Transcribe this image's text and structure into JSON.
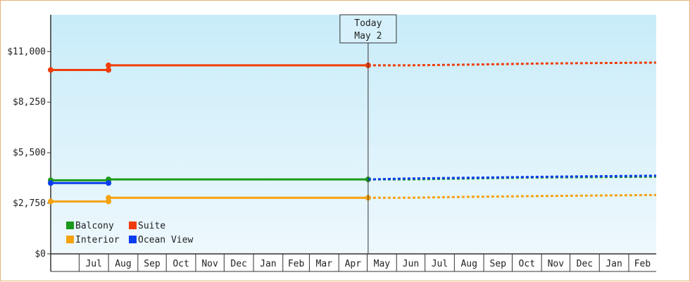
{
  "chart_data": {
    "type": "line",
    "y_ticks": [
      "$0",
      "$2,750",
      "$5,500",
      "$8,250",
      "$11,000"
    ],
    "ylim": [
      0,
      13000
    ],
    "x_range": [
      "2018-06-01",
      "2020-03-01"
    ],
    "months": [
      "Jul",
      "Aug",
      "Sep",
      "Oct",
      "Nov",
      "Dec",
      "Jan",
      "Feb",
      "Mar",
      "Apr",
      "May",
      "Jun",
      "Jul",
      "Aug",
      "Sep",
      "Oct",
      "Nov",
      "Dec",
      "Jan",
      "Feb"
    ],
    "month_dates": [
      "2018-07-01",
      "2018-08-01",
      "2018-09-01",
      "2018-10-01",
      "2018-11-01",
      "2018-12-01",
      "2019-01-01",
      "2019-02-01",
      "2019-03-01",
      "2019-04-01",
      "2019-05-01",
      "2019-06-01",
      "2019-07-01",
      "2019-08-01",
      "2019-09-01",
      "2019-10-01",
      "2019-11-01",
      "2019-12-01",
      "2020-01-01",
      "2020-02-01"
    ],
    "today": {
      "line1": "Today",
      "line2": "May 2",
      "date": "2019-05-02"
    },
    "legend": {
      "placement": "bottom-left"
    },
    "grid": false,
    "series": [
      {
        "name": "Balcony",
        "color": "#1a9a1a",
        "history": [
          [
            "2018-06-01",
            4000
          ],
          [
            "2018-08-01",
            4000
          ],
          [
            "2018-08-01",
            4050
          ],
          [
            "2019-05-02",
            4050
          ]
        ],
        "forecast": [
          [
            "2019-05-02",
            4050
          ],
          [
            "2019-06-15",
            4050
          ],
          [
            "2019-08-15",
            4100
          ],
          [
            "2019-10-15",
            4150
          ],
          [
            "2020-03-01",
            4200
          ]
        ]
      },
      {
        "name": "Suite",
        "color": "#f03c0a",
        "history": [
          [
            "2018-06-01",
            10000
          ],
          [
            "2018-08-01",
            10000
          ],
          [
            "2018-08-01",
            10250
          ],
          [
            "2019-05-02",
            10250
          ]
        ],
        "forecast": [
          [
            "2019-05-02",
            10250
          ],
          [
            "2019-06-15",
            10250
          ],
          [
            "2019-09-01",
            10300
          ],
          [
            "2019-11-01",
            10350
          ],
          [
            "2020-03-01",
            10400
          ]
        ]
      },
      {
        "name": "Interior",
        "color": "#f5a20f",
        "history": [
          [
            "2018-06-01",
            2850
          ],
          [
            "2018-08-01",
            2850
          ],
          [
            "2018-08-01",
            3050
          ],
          [
            "2019-05-02",
            3050
          ]
        ],
        "forecast": [
          [
            "2019-05-02",
            3050
          ],
          [
            "2019-06-15",
            3050
          ],
          [
            "2019-08-15",
            3100
          ],
          [
            "2019-11-15",
            3150
          ],
          [
            "2020-03-01",
            3200
          ]
        ]
      },
      {
        "name": "Ocean View",
        "color": "#0a3cf0",
        "history": [
          [
            "2018-06-01",
            3850
          ],
          [
            "2018-08-01",
            3850
          ]
        ],
        "forecast": [
          [
            "2019-05-02",
            4050
          ],
          [
            "2019-06-15",
            4100
          ],
          [
            "2019-09-01",
            4150
          ],
          [
            "2019-11-15",
            4200
          ],
          [
            "2020-03-01",
            4250
          ]
        ]
      }
    ]
  }
}
